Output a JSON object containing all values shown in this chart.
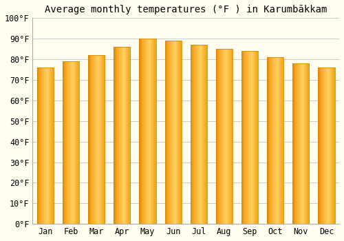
{
  "title": "Average monthly temperatures (°F ) in Karumbākkam",
  "months": [
    "Jan",
    "Feb",
    "Mar",
    "Apr",
    "May",
    "Jun",
    "Jul",
    "Aug",
    "Sep",
    "Oct",
    "Nov",
    "Dec"
  ],
  "values": [
    76,
    79,
    82,
    86,
    90,
    89,
    87,
    85,
    84,
    81,
    78,
    76
  ],
  "bar_color_main": "#F5A623",
  "bar_color_light": "#FFD060",
  "bar_color_dark": "#E08800",
  "background_color": "#FFFEF0",
  "plot_bg_color": "#FFFEF0",
  "ylim": [
    0,
    100
  ],
  "yticks": [
    0,
    10,
    20,
    30,
    40,
    50,
    60,
    70,
    80,
    90,
    100
  ],
  "ytick_labels": [
    "0°F",
    "10°F",
    "20°F",
    "30°F",
    "40°F",
    "50°F",
    "60°F",
    "70°F",
    "80°F",
    "90°F",
    "100°F"
  ],
  "title_fontsize": 10,
  "tick_fontsize": 8.5,
  "grid_color": "#cccccc",
  "spine_color": "#aaaaaa",
  "bar_width": 0.65
}
